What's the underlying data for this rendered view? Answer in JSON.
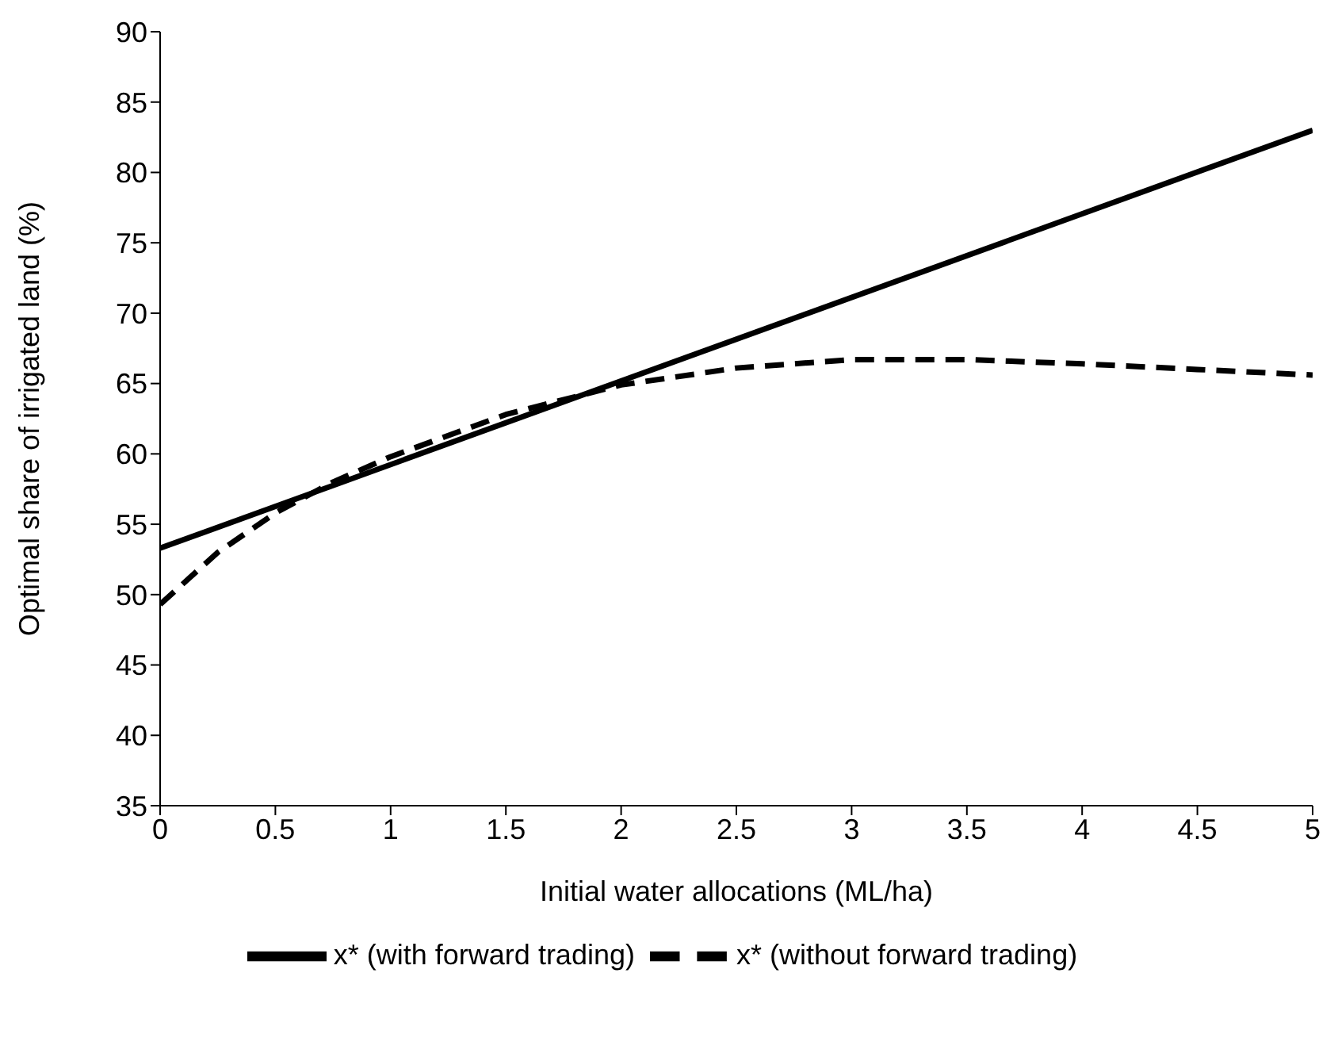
{
  "chart_data": {
    "type": "line",
    "xlabel": "Initial water allocations (ML/ha)",
    "ylabel": "Optimal share of irrigated land (%)",
    "xlim": [
      0,
      5
    ],
    "xticks": [
      0,
      0.5,
      1,
      1.5,
      2,
      2.5,
      3,
      3.5,
      4,
      4.5,
      5
    ],
    "ylim": [
      35,
      90
    ],
    "yticks": [
      35,
      40,
      45,
      50,
      55,
      60,
      65,
      70,
      75,
      80,
      85,
      90
    ],
    "grid": false,
    "legend": "bottom",
    "marker": "none",
    "series": [
      {
        "name": "x* (without forward trading)",
        "color": "#000000",
        "line_style": "dashed",
        "x": [
          0,
          0.25,
          0.5,
          0.75,
          1,
          1.5,
          2,
          2.5,
          3,
          3.5,
          4,
          4.5,
          5
        ],
        "values": [
          49.3,
          53,
          55.8,
          58,
          59.8,
          62.8,
          64.9,
          66.1,
          66.7,
          66.7,
          66.4,
          66,
          65.6
        ]
      },
      {
        "name": "x* (with forward trading)",
        "color": "#000000",
        "line_style": "solid",
        "x": [
          0,
          5
        ],
        "values": [
          53.3,
          83
        ]
      }
    ]
  }
}
